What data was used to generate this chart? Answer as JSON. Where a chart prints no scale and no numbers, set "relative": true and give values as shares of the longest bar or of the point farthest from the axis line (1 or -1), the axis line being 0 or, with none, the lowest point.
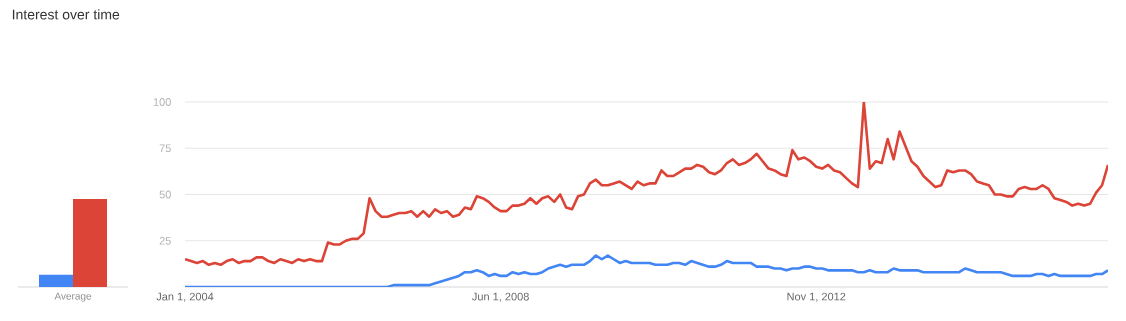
{
  "chart_data": [
    {
      "type": "bar",
      "title": "Interest over time",
      "categories": [
        "Average"
      ],
      "relative": true,
      "series": [
        {
          "color": "#4285f4",
          "values": [
            0.14
          ]
        },
        {
          "color": "#db4437",
          "values": [
            1
          ]
        }
      ]
    },
    {
      "type": "line",
      "grid": "y",
      "ylim": [
        0,
        100
      ],
      "yticks": [
        25,
        50,
        75,
        100
      ],
      "xlim": [
        "2004-01",
        "2016-12"
      ],
      "xticks": [
        {
          "value": "2004-01",
          "label": "Jan 1, 2004"
        },
        {
          "value": "2008-06",
          "label": "Jun 1, 2008"
        },
        {
          "value": "2012-11",
          "label": "Nov 1, 2012"
        }
      ],
      "x": [
        "2004-01",
        "2004-02",
        "2004-03",
        "2004-04",
        "2004-05",
        "2004-06",
        "2004-07",
        "2004-08",
        "2004-09",
        "2004-10",
        "2004-11",
        "2004-12",
        "2005-01",
        "2005-02",
        "2005-03",
        "2005-04",
        "2005-05",
        "2005-06",
        "2005-07",
        "2005-08",
        "2005-09",
        "2005-10",
        "2005-11",
        "2005-12",
        "2006-01",
        "2006-02",
        "2006-03",
        "2006-04",
        "2006-05",
        "2006-06",
        "2006-07",
        "2006-08",
        "2006-09",
        "2006-10",
        "2006-11",
        "2006-12",
        "2007-01",
        "2007-02",
        "2007-03",
        "2007-04",
        "2007-05",
        "2007-06",
        "2007-07",
        "2007-08",
        "2007-09",
        "2007-10",
        "2007-11",
        "2007-12",
        "2008-01",
        "2008-02",
        "2008-03",
        "2008-04",
        "2008-05",
        "2008-06",
        "2008-07",
        "2008-08",
        "2008-09",
        "2008-10",
        "2008-11",
        "2008-12",
        "2009-01",
        "2009-02",
        "2009-03",
        "2009-04",
        "2009-05",
        "2009-06",
        "2009-07",
        "2009-08",
        "2009-09",
        "2009-10",
        "2009-11",
        "2009-12",
        "2010-01",
        "2010-02",
        "2010-03",
        "2010-04",
        "2010-05",
        "2010-06",
        "2010-07",
        "2010-08",
        "2010-09",
        "2010-10",
        "2010-11",
        "2010-12",
        "2011-01",
        "2011-02",
        "2011-03",
        "2011-04",
        "2011-05",
        "2011-06",
        "2011-07",
        "2011-08",
        "2011-09",
        "2011-10",
        "2011-11",
        "2011-12",
        "2012-01",
        "2012-02",
        "2012-03",
        "2012-04",
        "2012-05",
        "2012-06",
        "2012-07",
        "2012-08",
        "2012-09",
        "2012-10",
        "2012-11",
        "2012-12",
        "2013-01",
        "2013-02",
        "2013-03",
        "2013-04",
        "2013-05",
        "2013-06",
        "2013-07",
        "2013-08",
        "2013-09",
        "2013-10",
        "2013-11",
        "2013-12",
        "2014-01",
        "2014-02",
        "2014-03",
        "2014-04",
        "2014-05",
        "2014-06",
        "2014-07",
        "2014-08",
        "2014-09",
        "2014-10",
        "2014-11",
        "2014-12",
        "2015-01",
        "2015-02",
        "2015-03",
        "2015-04",
        "2015-05",
        "2015-06",
        "2015-07",
        "2015-08",
        "2015-09",
        "2015-10",
        "2015-11",
        "2015-12",
        "2016-01",
        "2016-02",
        "2016-03",
        "2016-04",
        "2016-05",
        "2016-06",
        "2016-07",
        "2016-08",
        "2016-09",
        "2016-10",
        "2016-11",
        "2016-12"
      ],
      "series": [
        {
          "color": "#4285f4",
          "values": [
            0,
            0,
            0,
            0,
            0,
            0,
            0,
            0,
            0,
            0,
            0,
            0,
            0,
            0,
            0,
            0,
            0,
            0,
            0,
            0,
            0,
            0,
            0,
            0,
            0,
            0,
            0,
            0,
            0,
            0,
            0,
            0,
            0,
            0,
            0,
            1,
            1,
            1,
            1,
            1,
            1,
            1,
            2,
            3,
            4,
            5,
            6,
            8,
            8,
            9,
            8,
            6,
            7,
            6,
            6,
            8,
            7,
            8,
            7,
            7,
            8,
            10,
            11,
            12,
            11,
            12,
            12,
            12,
            14,
            17,
            15,
            17,
            15,
            13,
            14,
            13,
            13,
            13,
            13,
            12,
            12,
            12,
            13,
            13,
            12,
            14,
            13,
            12,
            11,
            11,
            12,
            14,
            13,
            13,
            13,
            13,
            11,
            11,
            11,
            10,
            10,
            9,
            10,
            10,
            11,
            11,
            10,
            10,
            9,
            9,
            9,
            9,
            9,
            8,
            8,
            9,
            8,
            8,
            8,
            10,
            9,
            9,
            9,
            9,
            8,
            8,
            8,
            8,
            8,
            8,
            8,
            10,
            9,
            8,
            8,
            8,
            8,
            8,
            7,
            6,
            6,
            6,
            6,
            7,
            7,
            6,
            7,
            6,
            6,
            6,
            6,
            6,
            6,
            7,
            7,
            9
          ]
        },
        {
          "color": "#db4437",
          "values": [
            15,
            14,
            13,
            14,
            12,
            13,
            12,
            14,
            15,
            13,
            14,
            14,
            16,
            16,
            14,
            13,
            15,
            14,
            13,
            15,
            14,
            15,
            14,
            14,
            24,
            23,
            23,
            25,
            26,
            26,
            29,
            48,
            41,
            38,
            38,
            39,
            40,
            40,
            41,
            38,
            41,
            38,
            42,
            40,
            41,
            38,
            39,
            43,
            42,
            49,
            48,
            46,
            43,
            41,
            41,
            44,
            44,
            45,
            48,
            45,
            48,
            49,
            46,
            50,
            43,
            42,
            49,
            50,
            56,
            58,
            55,
            55,
            56,
            57,
            55,
            53,
            57,
            55,
            56,
            56,
            63,
            60,
            60,
            62,
            64,
            64,
            66,
            65,
            62,
            61,
            63,
            67,
            69,
            66,
            67,
            69,
            72,
            68,
            64,
            63,
            61,
            60,
            74,
            69,
            70,
            68,
            65,
            64,
            66,
            63,
            62,
            59,
            56,
            54,
            100,
            64,
            68,
            67,
            80,
            69,
            84,
            76,
            68,
            65,
            60,
            57,
            54,
            55,
            63,
            62,
            63,
            63,
            61,
            57,
            56,
            55,
            50,
            50,
            49,
            49,
            53,
            54,
            53,
            53,
            55,
            53,
            48,
            47,
            46,
            44,
            45,
            44,
            45,
            51,
            55,
            66
          ]
        }
      ]
    }
  ]
}
